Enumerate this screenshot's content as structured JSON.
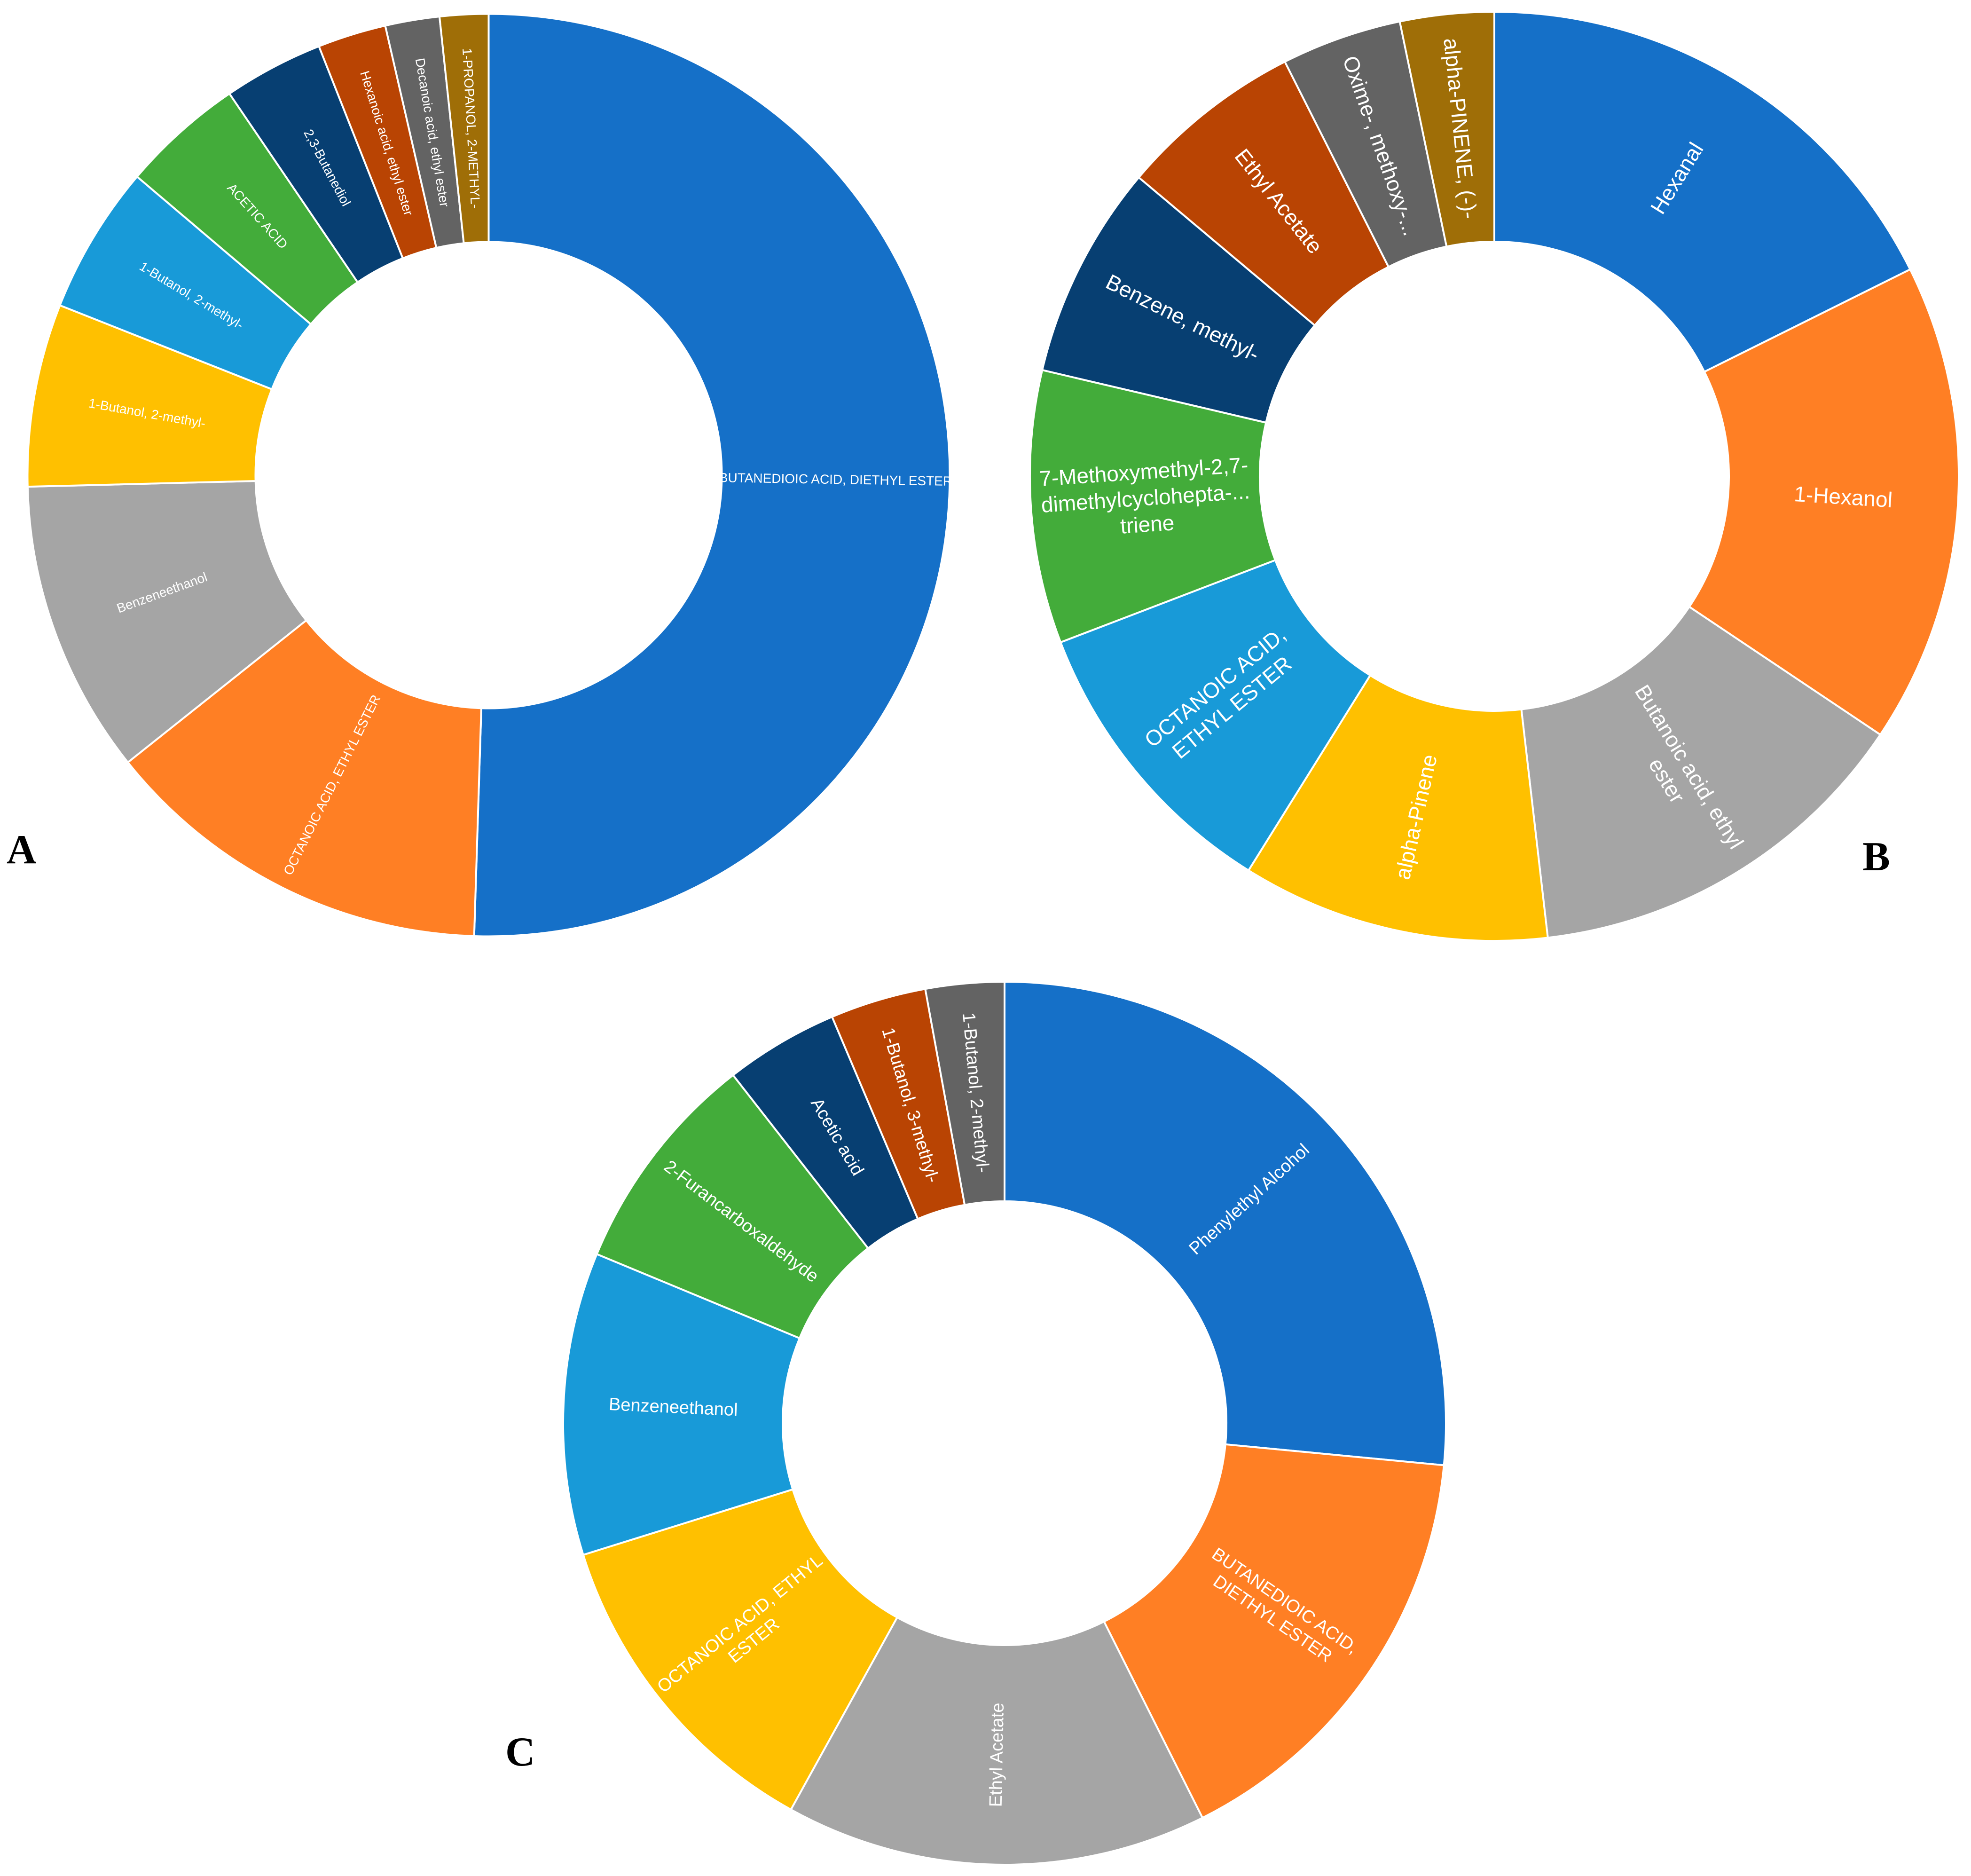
{
  "colors": {
    "blue": "#1570c8",
    "orange": "#ff7f24",
    "gray": "#a5a5a5",
    "yellow": "#ffc000",
    "light_blue": "#189ad8",
    "green": "#43ac3a",
    "navy": "#073f72",
    "brown": "#b94403",
    "dark_gray": "#636363",
    "olive": "#9f6e07",
    "separator": "#ffffff"
  },
  "panels": {
    "a": {
      "letter": "A"
    },
    "b": {
      "letter": "B"
    },
    "c": {
      "letter": "C"
    }
  },
  "chart_data": [
    {
      "type": "pie",
      "panel": "A",
      "start": "top",
      "direction": "clockwise",
      "slices": [
        {
          "label": "BUTANEDIOIC ACID, DIETHYL ESTER",
          "value": 50.5,
          "color": "#1570c8"
        },
        {
          "label": "OCTANOIC ACID, ETHYL ESTER",
          "value": 13.8,
          "color": "#ff7f24"
        },
        {
          "label": "Benzeneethanol",
          "value": 10.3,
          "color": "#a5a5a5"
        },
        {
          "label": "1-Butanol, 2-methyl-",
          "value": 6.4,
          "color": "#ffc000"
        },
        {
          "label": "1-Butanol, 2-methyl-",
          "value": 5.2,
          "color": "#189ad8"
        },
        {
          "label": "ACETIC ACID",
          "value": 4.3,
          "color": "#43ac3a"
        },
        {
          "label": "2,3-Butanediol",
          "value": 3.5,
          "color": "#073f72"
        },
        {
          "label": "Hexanoic acid, ethyl ester",
          "value": 2.4,
          "color": "#b94403"
        },
        {
          "label": "Decanoic acid, ethyl ester",
          "value": 1.9,
          "color": "#636363"
        },
        {
          "label": "1-PROPANOL, 2-METHYL-",
          "value": 1.7,
          "color": "#9f6e07"
        }
      ]
    },
    {
      "type": "pie",
      "panel": "B",
      "start": "top",
      "direction": "clockwise",
      "slices": [
        {
          "label": "Hexanal",
          "value": 17.3,
          "color": "#1570c8"
        },
        {
          "label": "1-Hexanol",
          "value": 16.4,
          "color": "#ff7f24"
        },
        {
          "label": "Butanoic acid, ethyl ester",
          "value": 13.5,
          "color": "#a5a5a5"
        },
        {
          "label": "alpha-Pinene",
          "value": 10.5,
          "color": "#ffc000"
        },
        {
          "label": "OCTANOIC ACID, ETHYL ESTER",
          "value": 10.1,
          "color": "#189ad8"
        },
        {
          "label": "7-Methoxymethyl-2,7-dimethylcyclohepta-...triene",
          "value": 9.3,
          "color": "#43ac3a"
        },
        {
          "label": "Benzene, methyl-",
          "value": 7.3,
          "color": "#073f72"
        },
        {
          "label": "Ethyl Acetate",
          "value": 6.3,
          "color": "#b94403"
        },
        {
          "label": "Oxime-, methoxy-...",
          "value": 4.1,
          "color": "#636363"
        },
        {
          "label": "alpha-PINENE, (-)-",
          "value": 3.2,
          "color": "#9f6e07"
        }
      ]
    },
    {
      "type": "pie",
      "panel": "C",
      "start": "top",
      "direction": "clockwise",
      "slices": [
        {
          "label": "Phenylethyl Alcohol",
          "value": 24.9,
          "color": "#1570c8"
        },
        {
          "label": "BUTANEDIOIC ACID, DIETHYL ESTER",
          "value": 15.1,
          "color": "#ff7f24"
        },
        {
          "label": "Ethyl Acetate",
          "value": 14.5,
          "color": "#a5a5a5"
        },
        {
          "label": "OCTANOIC ACID, ETHYL ESTER",
          "value": 11.4,
          "color": "#ffc000"
        },
        {
          "label": "Benzeneethanol",
          "value": 10.4,
          "color": "#189ad8"
        },
        {
          "label": "2-Furancarboxaldehyde",
          "value": 7.7,
          "color": "#43ac3a"
        },
        {
          "label": "Acetic acid",
          "value": 3.9,
          "color": "#073f72"
        },
        {
          "label": "1-Butanol, 3-methyl-",
          "value": 3.3,
          "color": "#b94403"
        },
        {
          "label": "1-Butanol, 2-methyl-",
          "value": 2.7,
          "color": "#636363"
        }
      ]
    }
  ]
}
